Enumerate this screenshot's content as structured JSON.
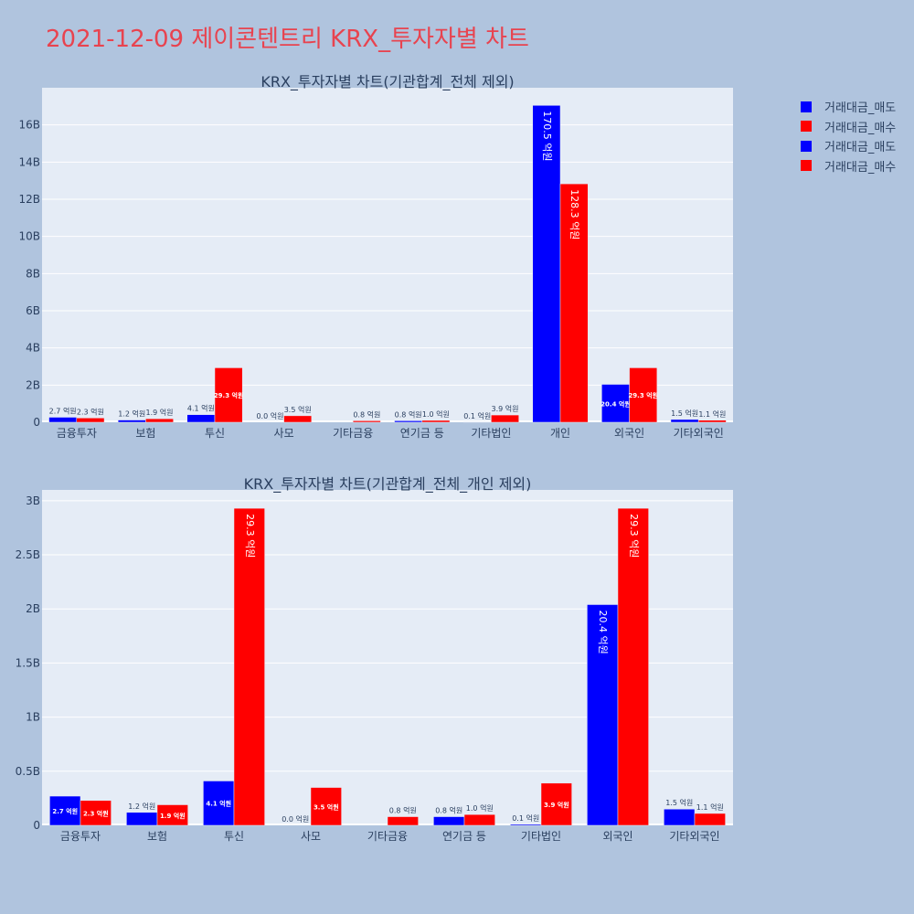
{
  "page_title": "2021-12-09 제이콘텐트리 KRX_투자자별 차트",
  "colors": {
    "sell": "#0000ff",
    "buy": "#ff0000",
    "plot_bg": "#e5ecf6",
    "paper_bg": "#b0c4de",
    "title": "#e8434f"
  },
  "legend": [
    {
      "label": "거래대금_매도",
      "color": "#0000ff"
    },
    {
      "label": "거래대금_매수",
      "color": "#ff0000"
    },
    {
      "label": "거래대금_매도",
      "color": "#0000ff"
    },
    {
      "label": "거래대금_매수",
      "color": "#ff0000"
    }
  ],
  "chart_data": [
    {
      "type": "bar",
      "title": "KRX_투자자별 차트(기관합계_전체 제외)",
      "categories": [
        "금융투자",
        "보험",
        "투신",
        "사모",
        "기타금융",
        "연기금 등",
        "기타법인",
        "개인",
        "외국인",
        "기타외국인"
      ],
      "series": [
        {
          "name": "거래대금_매도",
          "values": [
            0.27,
            0.12,
            0.41,
            0.0,
            0.0,
            0.08,
            0.01,
            17.05,
            2.04,
            0.15
          ],
          "labels": [
            "2.7 억원",
            "1.2 억원",
            "4.1 억원",
            "0.0 억원",
            "",
            "0.8 억원",
            "0.1 억원",
            "170.5 억원",
            "20.4 억원",
            "1.5 억원"
          ]
        },
        {
          "name": "거래대금_매수",
          "values": [
            0.23,
            0.19,
            2.93,
            0.35,
            0.08,
            0.1,
            0.39,
            12.83,
            2.93,
            0.11
          ],
          "labels": [
            "2.3 억원",
            "1.9 억원",
            "29.3 억원",
            "3.5 억원",
            "0.8 억원",
            "1.0 억원",
            "3.9 억원",
            "128.3 억원",
            "29.3 억원",
            "1.1 억원"
          ]
        }
      ],
      "ylim": [
        0,
        18
      ],
      "y_ticks": [
        0,
        2,
        4,
        6,
        8,
        10,
        12,
        14,
        16
      ],
      "y_tick_labels": [
        "0",
        "2B",
        "4B",
        "6B",
        "8B",
        "10B",
        "12B",
        "14B",
        "16B"
      ],
      "grid": true
    },
    {
      "type": "bar",
      "title": "KRX_투자자별 차트(기관합계_전체_개인 제외)",
      "categories": [
        "금융투자",
        "보험",
        "투신",
        "사모",
        "기타금융",
        "연기금 등",
        "기타법인",
        "외국인",
        "기타외국인"
      ],
      "series": [
        {
          "name": "거래대금_매도",
          "values": [
            0.27,
            0.12,
            0.41,
            0.0,
            0.0,
            0.08,
            0.01,
            2.04,
            0.15
          ],
          "labels": [
            "2.7 억원",
            "1.2 억원",
            "4.1 억원",
            "0.0 억원",
            "",
            "0.8 억원",
            "0.1 억원",
            "20.4 억원",
            "1.5 억원"
          ]
        },
        {
          "name": "거래대금_매수",
          "values": [
            0.23,
            0.19,
            2.93,
            0.35,
            0.08,
            0.1,
            0.39,
            2.93,
            0.11
          ],
          "labels": [
            "2.3 억원",
            "1.9 억원",
            "29.3 억원",
            "3.5 억원",
            "0.8 억원",
            "1.0 억원",
            "3.9 억원",
            "29.3 억원",
            "1.1 억원"
          ]
        }
      ],
      "ylim": [
        0,
        3.1
      ],
      "y_ticks": [
        0,
        0.5,
        1,
        1.5,
        2,
        2.5,
        3
      ],
      "y_tick_labels": [
        "0",
        "0.5B",
        "1B",
        "1.5B",
        "2B",
        "2.5B",
        "3B"
      ],
      "grid": true
    }
  ]
}
